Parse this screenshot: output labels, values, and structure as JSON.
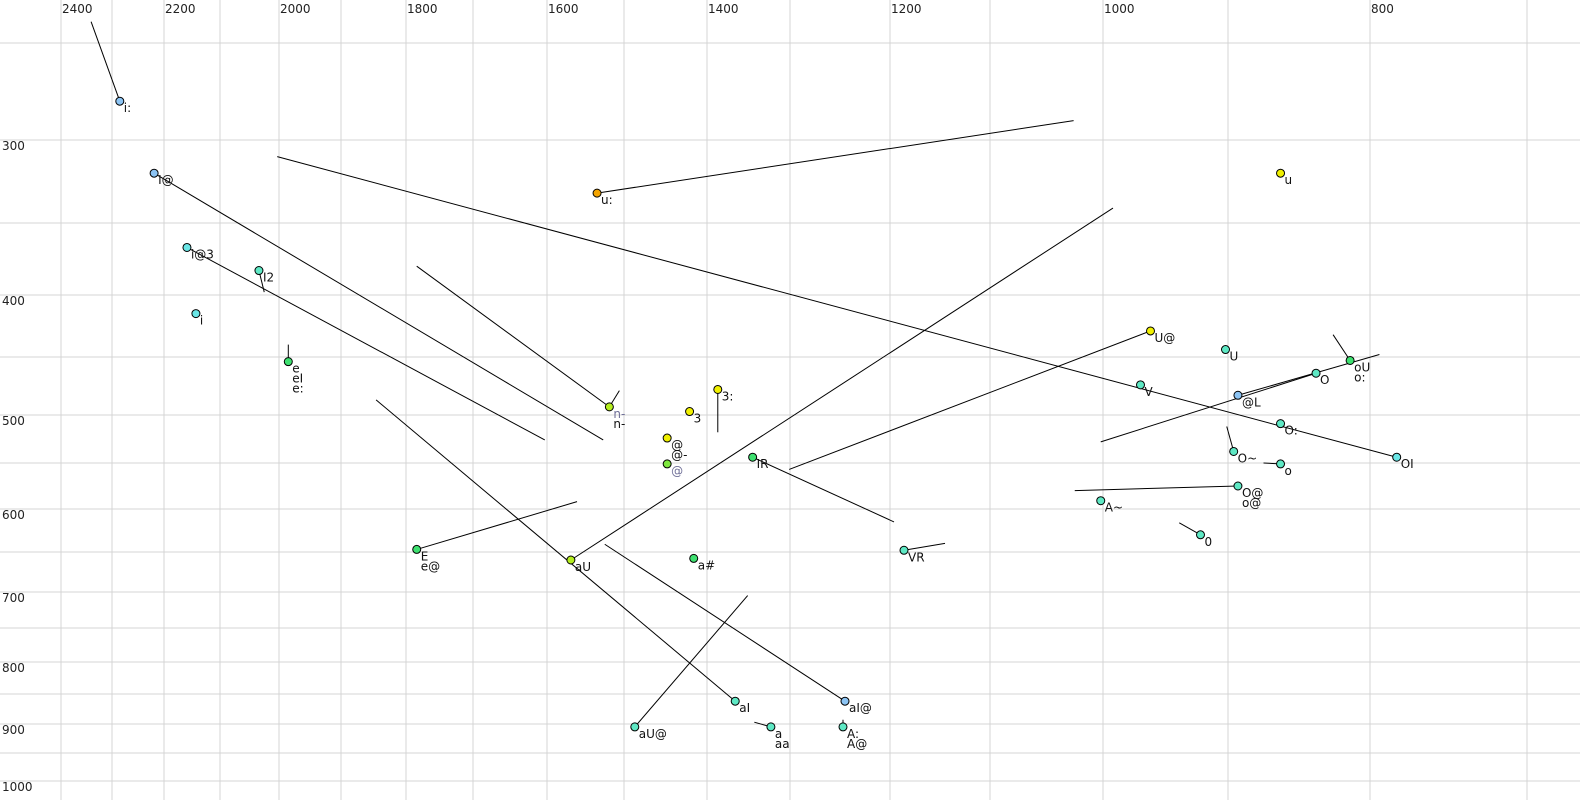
{
  "chart_data": {
    "type": "scatter",
    "title": "",
    "xlabel": "",
    "ylabel": "",
    "x_axis": {
      "reversed": true,
      "position": "top",
      "tick_labels": [
        "2400",
        "2200",
        "2000",
        "1800",
        "1600",
        "1400",
        "1200",
        "1000",
        "800"
      ],
      "gridlines": [
        2400,
        2300,
        2200,
        2100,
        2000,
        1900,
        1800,
        1700,
        1600,
        1500,
        1400,
        1300,
        1200,
        1100,
        1000,
        900,
        800,
        700
      ]
    },
    "y_axis": {
      "reversed": true,
      "position": "left",
      "tick_labels": [
        "300",
        "400",
        "500",
        "600",
        "700",
        "800",
        "900",
        "1000"
      ],
      "gridlines": [
        250,
        300,
        350,
        400,
        450,
        500,
        550,
        600,
        650,
        700,
        750,
        800,
        850,
        900,
        950,
        1000
      ]
    },
    "grid": true,
    "colors": {
      "light_blue": "#8cc4f4",
      "cyan": "#6ae6e6",
      "aquamarine": "#5ee8c4",
      "green": "#3ee070",
      "yellow": "#f0f000",
      "yellow_green": "#b4ee1e",
      "orange": "#f4a400",
      "light_green": "#7ee83e",
      "alt_label": "#707098"
    },
    "points": [
      {
        "labels": [
          "i:"
        ],
        "x": 2285,
        "y": 280,
        "color": "light_blue",
        "end": [
          2341,
          239
        ]
      },
      {
        "labels": [
          "I@"
        ],
        "x": 2219,
        "y": 320,
        "color": "light_blue",
        "end": [
          1527,
          526
        ]
      },
      {
        "labels": [
          "i@3"
        ],
        "x": 2159,
        "y": 367,
        "color": "cyan",
        "end": [
          1603,
          526
        ]
      },
      {
        "labels": [
          "I2"
        ],
        "x": 2034,
        "y": 383,
        "color": "aquamarine",
        "end": [
          2025,
          398
        ]
      },
      {
        "labels": [
          "i"
        ],
        "x": 2143,
        "y": 415,
        "color": "cyan"
      },
      {
        "labels": [
          "e",
          "eI",
          "e:"
        ],
        "x": 1985,
        "y": 454,
        "color": "green",
        "end": [
          1985,
          440
        ]
      },
      {
        "labels": [
          "u:"
        ],
        "x": 1535,
        "y": 332,
        "color": "orange",
        "end": [
          1026,
          290
        ]
      },
      {
        "labels": [
          "u"
        ],
        "x": 863,
        "y": 320,
        "color": "yellow"
      },
      {
        "labels": [
          "OI"
        ],
        "x": 783,
        "y": 544,
        "color": "cyan",
        "end": [
          2003,
          310
        ]
      },
      {
        "labels": [
          "n-",
          "n-"
        ],
        "alt_first": true,
        "x": 1519,
        "y": 493,
        "color": "yellow_green",
        "end": [
          1784,
          380
        ],
        "end2": [
          1506,
          479
        ]
      },
      {
        "labels": [
          "3:"
        ],
        "x": 1387,
        "y": 478,
        "color": "yellow",
        "end": [
          1387,
          518
        ]
      },
      {
        "labels": [
          "3"
        ],
        "x": 1421,
        "y": 497,
        "color": "yellow"
      },
      {
        "labels": [
          "@",
          "@-"
        ],
        "x": 1448,
        "y": 524,
        "color": "yellow"
      },
      {
        "labels": [
          "@"
        ],
        "alt_first": true,
        "x": 1448,
        "y": 551,
        "color": "light_green"
      },
      {
        "labels": [
          "IR"
        ],
        "x": 1345,
        "y": 544,
        "color": "green",
        "end": [
          1196,
          615
        ]
      },
      {
        "labels": [
          "a#"
        ],
        "x": 1416,
        "y": 658,
        "color": "green"
      },
      {
        "labels": [
          "aU"
        ],
        "x": 1569,
        "y": 660,
        "color": "yellow_green",
        "end": [
          992,
          341
        ]
      },
      {
        "labels": [
          "E",
          "e@"
        ],
        "x": 1784,
        "y": 647,
        "color": "green",
        "end": [
          1561,
          592
        ]
      },
      {
        "labels": [
          "VR"
        ],
        "x": 1186,
        "y": 648,
        "color": "aquamarine",
        "end": [
          1145,
          640
        ]
      },
      {
        "labels": [
          "U@"
        ],
        "x": 962,
        "y": 429,
        "color": "yellow",
        "end": [
          1301,
          557
        ]
      },
      {
        "labels": [
          "U"
        ],
        "x": 902,
        "y": 444,
        "color": "aquamarine"
      },
      {
        "labels": [
          "V"
        ],
        "x": 970,
        "y": 474,
        "color": "aquamarine"
      },
      {
        "labels": [
          "@L"
        ],
        "x": 893,
        "y": 483,
        "color": "light_blue",
        "end": [
          794,
          448
        ]
      },
      {
        "labels": [
          "oU",
          "o:"
        ],
        "x": 814,
        "y": 453,
        "color": "green",
        "end": [
          826,
          432
        ]
      },
      {
        "labels": [
          "O"
        ],
        "x": 838,
        "y": 464,
        "color": "aquamarine",
        "end": [
          1002,
          528
        ]
      },
      {
        "labels": [
          "O:"
        ],
        "x": 863,
        "y": 509,
        "color": "aquamarine"
      },
      {
        "labels": [
          "O~"
        ],
        "x": 896,
        "y": 538,
        "color": "aquamarine",
        "end": [
          901,
          512
        ]
      },
      {
        "labels": [
          "o"
        ],
        "x": 863,
        "y": 551,
        "color": "aquamarine",
        "end": [
          875,
          550
        ]
      },
      {
        "labels": [
          "O@",
          "o@"
        ],
        "x": 893,
        "y": 575,
        "color": "aquamarine",
        "end": [
          1025,
          580
        ]
      },
      {
        "labels": [
          "A~"
        ],
        "x": 1002,
        "y": 591,
        "color": "aquamarine"
      },
      {
        "labels": [
          "0"
        ],
        "x": 922,
        "y": 630,
        "color": "aquamarine",
        "end": [
          939,
          616
        ]
      },
      {
        "labels": [
          "aI"
        ],
        "x": 1366,
        "y": 862,
        "color": "aquamarine",
        "end": [
          1846,
          487
        ]
      },
      {
        "labels": [
          "aU@"
        ],
        "x": 1487,
        "y": 905,
        "color": "aquamarine",
        "end": [
          1351,
          705
        ]
      },
      {
        "labels": [
          "a",
          "aa"
        ],
        "x": 1323,
        "y": 905,
        "color": "aquamarine",
        "end": [
          1343,
          897
        ]
      },
      {
        "labels": [
          "aI@"
        ],
        "x": 1245,
        "y": 862,
        "color": "light_blue",
        "end": [
          1525,
          641
        ]
      },
      {
        "labels": [
          "A:",
          "A@"
        ],
        "x": 1247,
        "y": 905,
        "color": "aquamarine",
        "end": [
          1247,
          893
        ]
      }
    ]
  }
}
